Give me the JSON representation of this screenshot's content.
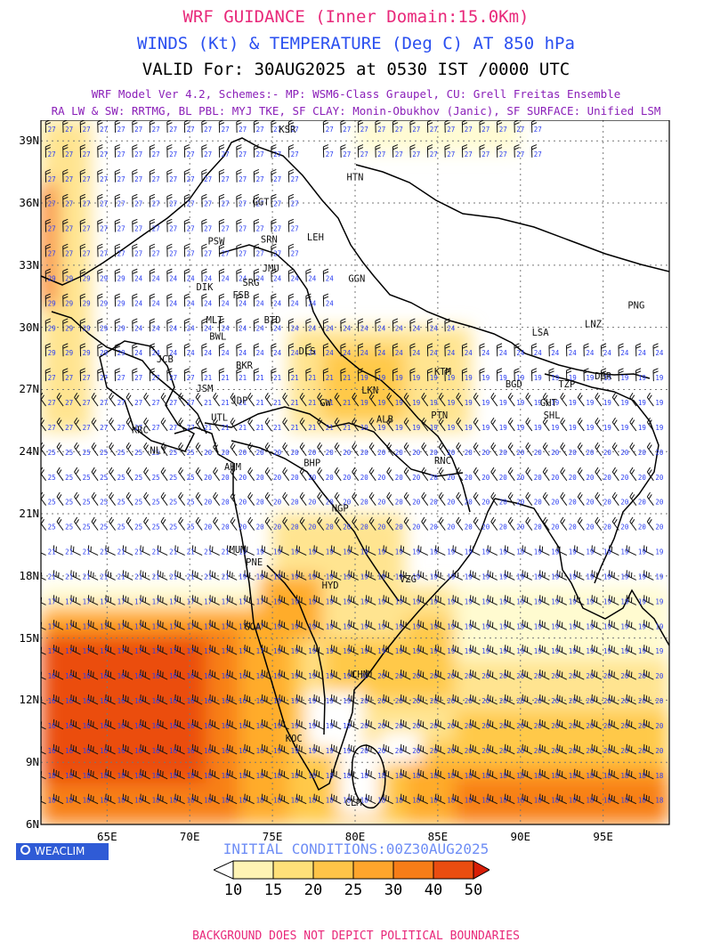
{
  "header": {
    "title": "WRF GUIDANCE (Inner Domain:15.0Km)",
    "subtitle": "WINDS (Kt) & TEMPERATURE (Deg C) AT 850 hPa",
    "valid": "VALID For: 30AUG2025 at 0530 IST /0000 UTC",
    "model_line1": "WRF Model Ver 4.2, Schemes:- MP: WSM6-Class Graupel, CU: Grell Freitas Ensemble",
    "model_line2": "RA LW & SW: RRTMG, BL PBL: MYJ TKE, SF CLAY: Monin-Obukhov (Janic), SF SURFACE: Unified LSM"
  },
  "map": {
    "lat_labels": [
      "39N",
      "36N",
      "33N",
      "30N",
      "27N",
      "24N",
      "21N",
      "18N",
      "15N",
      "12N",
      "9N",
      "6N"
    ],
    "lon_labels": [
      "65E",
      "70E",
      "75E",
      "80E",
      "85E",
      "90E",
      "95E"
    ],
    "stations": [
      {
        "code": "KSR",
        "lat": 39.4,
        "lon": 75.9
      },
      {
        "code": "HTN",
        "lat": 37.1,
        "lon": 80.0
      },
      {
        "code": "GGT",
        "lat": 35.9,
        "lon": 74.3
      },
      {
        "code": "PSW",
        "lat": 34.0,
        "lon": 71.6
      },
      {
        "code": "SRN",
        "lat": 34.1,
        "lon": 74.8
      },
      {
        "code": "LEH",
        "lat": 34.2,
        "lon": 77.6
      },
      {
        "code": "JMU",
        "lat": 32.7,
        "lon": 74.9
      },
      {
        "code": "GGN",
        "lat": 32.2,
        "lon": 80.1
      },
      {
        "code": "DIK",
        "lat": 31.8,
        "lon": 70.9
      },
      {
        "code": "SRG",
        "lat": 32.0,
        "lon": 73.7
      },
      {
        "code": "FSB",
        "lat": 31.4,
        "lon": 73.1
      },
      {
        "code": "PNG",
        "lat": 30.9,
        "lon": 97.0
      },
      {
        "code": "MLT",
        "lat": 30.2,
        "lon": 71.5
      },
      {
        "code": "BTD",
        "lat": 30.2,
        "lon": 75.0
      },
      {
        "code": "BWL",
        "lat": 29.4,
        "lon": 71.7
      },
      {
        "code": "LSA",
        "lat": 29.6,
        "lon": 91.2
      },
      {
        "code": "LNZ",
        "lat": 30.0,
        "lon": 94.4
      },
      {
        "code": "DLS",
        "lat": 28.7,
        "lon": 77.1
      },
      {
        "code": "JCB",
        "lat": 28.3,
        "lon": 68.5
      },
      {
        "code": "BKR",
        "lat": 28.0,
        "lon": 73.3
      },
      {
        "code": "KTM",
        "lat": 27.7,
        "lon": 85.3
      },
      {
        "code": "JSM",
        "lat": 26.9,
        "lon": 70.9
      },
      {
        "code": "BGD",
        "lat": 27.1,
        "lon": 89.6
      },
      {
        "code": "TZP",
        "lat": 27.1,
        "lon": 92.8
      },
      {
        "code": "DBR",
        "lat": 27.5,
        "lon": 95.0
      },
      {
        "code": "GHT",
        "lat": 26.2,
        "lon": 91.7
      },
      {
        "code": "LKN",
        "lat": 26.8,
        "lon": 80.9
      },
      {
        "code": "GW",
        "lat": 26.2,
        "lon": 78.2
      },
      {
        "code": "JDP",
        "lat": 26.3,
        "lon": 73.0
      },
      {
        "code": "SHL",
        "lat": 25.6,
        "lon": 91.9
      },
      {
        "code": "UTL",
        "lat": 25.5,
        "lon": 71.8
      },
      {
        "code": "PTN",
        "lat": 25.6,
        "lon": 85.1
      },
      {
        "code": "ALB",
        "lat": 25.4,
        "lon": 81.8
      },
      {
        "code": "KRC",
        "lat": 24.9,
        "lon": 67.0
      },
      {
        "code": "NLY",
        "lat": 23.9,
        "lon": 68.1
      },
      {
        "code": "AHM",
        "lat": 23.1,
        "lon": 72.6
      },
      {
        "code": "BHP",
        "lat": 23.3,
        "lon": 77.4
      },
      {
        "code": "RNC",
        "lat": 23.4,
        "lon": 85.3
      },
      {
        "code": "NGP",
        "lat": 21.1,
        "lon": 79.1
      },
      {
        "code": "MUM",
        "lat": 19.1,
        "lon": 72.9
      },
      {
        "code": "PNE",
        "lat": 18.5,
        "lon": 73.9
      },
      {
        "code": "HYD",
        "lat": 17.4,
        "lon": 78.5
      },
      {
        "code": "VZG",
        "lat": 17.7,
        "lon": 83.2
      },
      {
        "code": "GOA",
        "lat": 15.4,
        "lon": 73.8
      },
      {
        "code": "CHN",
        "lat": 13.1,
        "lon": 80.3
      },
      {
        "code": "KOC",
        "lat": 10.0,
        "lon": 76.3
      },
      {
        "code": "CLM",
        "lat": 6.9,
        "lon": 79.9
      }
    ],
    "temp_colors": {
      "c10": "#fffbd0",
      "c15": "#ffe490",
      "c20": "#ffc94a",
      "c25": "#ffac2c",
      "c30": "#f88016",
      "c40": "#eb4e10",
      "c50": "#d81e06"
    }
  },
  "brand": {
    "name": "WEACLIM"
  },
  "initial_conditions": "INITIAL CONDITIONS:00Z30AUG2025",
  "colorbar": {
    "ticks": [
      "10",
      "15",
      "20",
      "25",
      "30",
      "40",
      "50"
    ],
    "colors": [
      "#ffffff",
      "#fff3b4",
      "#ffe079",
      "#ffc448",
      "#ffa52c",
      "#f77d17",
      "#ea4d10",
      "#d81e06"
    ]
  },
  "footer": "BACKGROUND DOES NOT DEPICT POLITICAL BOUNDARIES"
}
